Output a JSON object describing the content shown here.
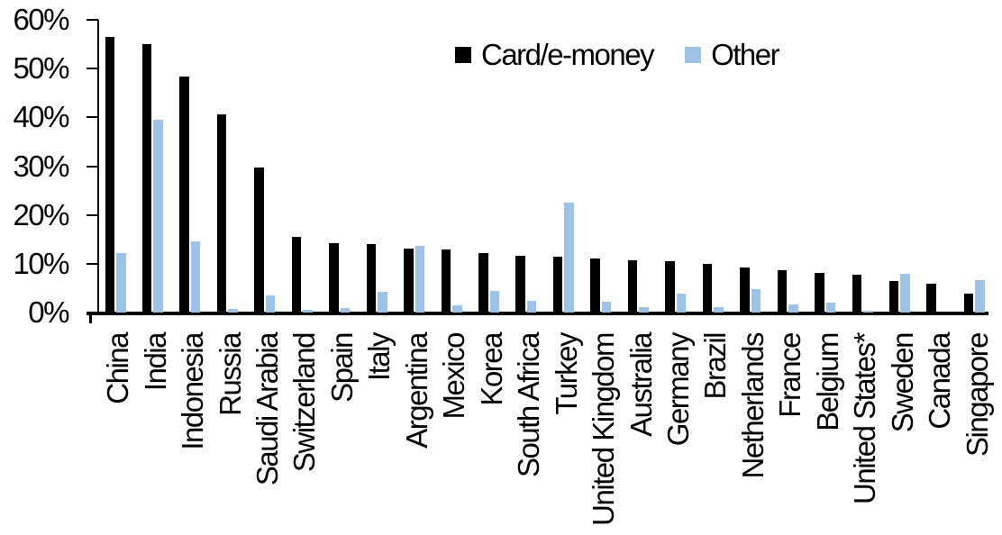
{
  "chart_data": {
    "type": "bar",
    "title": "",
    "xlabel": "",
    "ylabel": "",
    "ylim": [
      0,
      60
    ],
    "grid": false,
    "legend_position": "top-center",
    "yticks": [
      {
        "value": 0,
        "label": "0%"
      },
      {
        "value": 10,
        "label": "10%"
      },
      {
        "value": 20,
        "label": "20%"
      },
      {
        "value": 30,
        "label": "30%"
      },
      {
        "value": 40,
        "label": "40%"
      },
      {
        "value": 50,
        "label": "50%"
      },
      {
        "value": 60,
        "label": "60%"
      }
    ],
    "categories": [
      "China",
      "India",
      "Indonesia",
      "Russia",
      "Saudi Arabia",
      "Switzerland",
      "Spain",
      "Italy",
      "Argentina",
      "Mexico",
      "Korea",
      "South Africa",
      "Turkey",
      "United Kingdom",
      "Australia",
      "Germany",
      "Brazil",
      "Netherlands",
      "France",
      "Belgium",
      "United States*",
      "Sweden",
      "Canada",
      "Singapore"
    ],
    "series": [
      {
        "name": "Card/e-money",
        "color": "#000000",
        "values": [
          56.5,
          55.1,
          48.4,
          40.6,
          29.8,
          15.5,
          14.2,
          14.0,
          13.2,
          12.9,
          12.2,
          11.6,
          11.5,
          11.0,
          10.7,
          10.5,
          10.0,
          9.2,
          8.6,
          8.1,
          7.8,
          6.4,
          5.9,
          3.8
        ]
      },
      {
        "name": "Other",
        "color": "#9DC3E6",
        "values": [
          12.2,
          39.6,
          14.5,
          0.8,
          3.5,
          0.6,
          0.9,
          4.3,
          13.6,
          1.4,
          4.5,
          2.4,
          22.5,
          2.3,
          1.1,
          3.8,
          1.2,
          4.8,
          1.6,
          2.1,
          0.3,
          8.0,
          0.0,
          6.6
        ]
      }
    ]
  }
}
